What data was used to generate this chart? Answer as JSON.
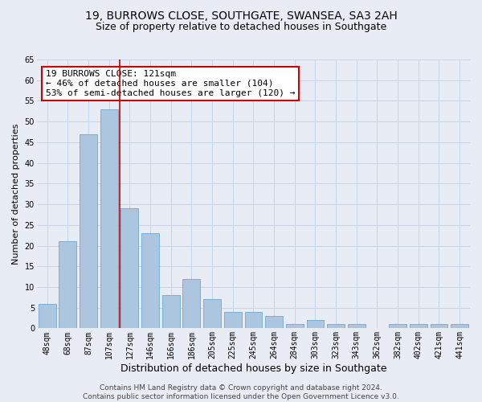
{
  "title": "19, BURROWS CLOSE, SOUTHGATE, SWANSEA, SA3 2AH",
  "subtitle": "Size of property relative to detached houses in Southgate",
  "xlabel": "Distribution of detached houses by size in Southgate",
  "ylabel": "Number of detached properties",
  "categories": [
    "48sqm",
    "68sqm",
    "87sqm",
    "107sqm",
    "127sqm",
    "146sqm",
    "166sqm",
    "186sqm",
    "205sqm",
    "225sqm",
    "245sqm",
    "264sqm",
    "284sqm",
    "303sqm",
    "323sqm",
    "343sqm",
    "362sqm",
    "382sqm",
    "402sqm",
    "421sqm",
    "441sqm"
  ],
  "values": [
    6,
    21,
    47,
    53,
    29,
    23,
    8,
    12,
    7,
    4,
    4,
    3,
    1,
    2,
    1,
    1,
    0,
    1,
    1,
    1,
    1
  ],
  "bar_color": "#adc6e0",
  "bar_edgecolor": "#6fa8d0",
  "grid_color": "#c8d4e8",
  "background_color": "#e8edf5",
  "vline_color": "#cc0000",
  "annotation_text": "19 BURROWS CLOSE: 121sqm\n← 46% of detached houses are smaller (104)\n53% of semi-detached houses are larger (120) →",
  "annotation_box_color": "white",
  "annotation_box_edgecolor": "#cc0000",
  "ylim": [
    0,
    65
  ],
  "yticks": [
    0,
    5,
    10,
    15,
    20,
    25,
    30,
    35,
    40,
    45,
    50,
    55,
    60,
    65
  ],
  "footer_text": "Contains HM Land Registry data © Crown copyright and database right 2024.\nContains public sector information licensed under the Open Government Licence v3.0.",
  "title_fontsize": 10,
  "subtitle_fontsize": 9,
  "xlabel_fontsize": 9,
  "ylabel_fontsize": 8,
  "tick_fontsize": 7,
  "annotation_fontsize": 8,
  "footer_fontsize": 6.5
}
